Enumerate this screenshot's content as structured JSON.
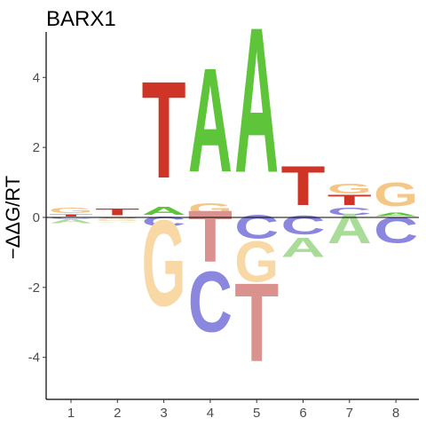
{
  "chart_data": {
    "type": "sequence-logo",
    "title": "BARX1",
    "xlabel": "",
    "ylabel": "−ΔΔG/RT",
    "positions": [
      1,
      2,
      3,
      4,
      5,
      6,
      7,
      8
    ],
    "x_ticks": [
      "1",
      "2",
      "3",
      "4",
      "5",
      "6",
      "7",
      "8"
    ],
    "y_ticks": [
      -4,
      -2,
      0,
      2,
      4
    ],
    "y_tick_labels": [
      "-4",
      "-2",
      "0",
      "2",
      "4"
    ],
    "ylim": [
      -5.2,
      5.3
    ],
    "grid": false,
    "legend": "none",
    "letter_colors": {
      "A": "#5ec43a",
      "C": "#8b87df",
      "G": "#f5c787",
      "T": "#cf3527"
    },
    "negative_colors": {
      "A": "#a8dc98",
      "C": "#8b87df",
      "G": "#f8d9a6",
      "T": "#d9928e"
    },
    "columns": [
      {
        "position": 1,
        "positive": [
          {
            "letter": "T",
            "height": 0.08
          },
          {
            "letter": "G",
            "height": 0.17
          }
        ],
        "negative": [
          {
            "letter": "C",
            "height": 0.06
          },
          {
            "letter": "A",
            "height": 0.14
          }
        ]
      },
      {
        "position": 2,
        "positive": [
          {
            "letter": "T",
            "height": 0.22
          }
        ],
        "negative": [
          {
            "letter": "C",
            "height": 0.04
          },
          {
            "letter": "G",
            "height": 0.08
          },
          {
            "letter": "A",
            "height": 0.02
          }
        ]
      },
      {
        "position": 3,
        "positive": [
          {
            "letter": "A",
            "height": 0.27
          },
          {
            "letter": "T",
            "height": 3.23
          }
        ],
        "negative": [
          {
            "letter": "C",
            "height": 0.34
          },
          {
            "letter": "G",
            "height": 2.95
          }
        ]
      },
      {
        "position": 4,
        "positive": [
          {
            "letter": "G",
            "height": 0.38
          },
          {
            "letter": "A",
            "height": 3.47
          }
        ],
        "negative": [
          {
            "letter": "T",
            "height": 1.72
          },
          {
            "letter": "C",
            "height": 2.08
          }
        ]
      },
      {
        "position": 5,
        "positive": [
          {
            "letter": "A",
            "height": 4.85
          }
        ],
        "negative": [
          {
            "letter": "C",
            "height": 0.8
          },
          {
            "letter": "G",
            "height": 1.4
          },
          {
            "letter": "T",
            "height": 2.62
          }
        ]
      },
      {
        "position": 6,
        "positive": [
          {
            "letter": "T",
            "height": 1.3
          }
        ],
        "negative": [
          {
            "letter": "C",
            "height": 0.65
          },
          {
            "letter": "A",
            "height": 0.65
          }
        ]
      },
      {
        "position": 7,
        "positive": [
          {
            "letter": "C",
            "height": 0.26
          },
          {
            "letter": "T",
            "height": 0.34
          },
          {
            "letter": "G",
            "height": 0.33
          }
        ],
        "negative": [
          {
            "letter": "A",
            "height": 1.0
          }
        ]
      },
      {
        "position": 8,
        "positive": [
          {
            "letter": "A",
            "height": 0.12
          },
          {
            "letter": "G",
            "height": 0.8
          }
        ],
        "negative": [
          {
            "letter": "T",
            "height": 0.07
          },
          {
            "letter": "C",
            "height": 0.88
          }
        ]
      }
    ]
  }
}
